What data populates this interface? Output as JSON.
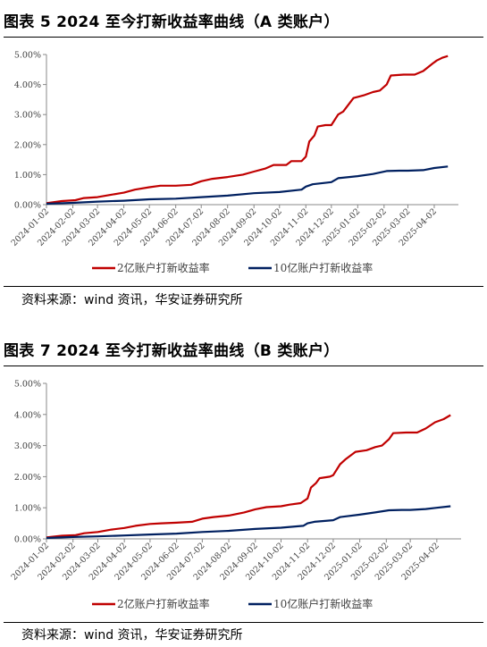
{
  "figures": [
    {
      "title": "图表 5 2024 至今打新收益率曲线（A 类账户）",
      "source": "资料来源：wind 资讯，华安证券研究所"
    },
    {
      "title": "图表 7 2024 至今打新收益率曲线（B 类账户）",
      "source": "资料来源：wind 资讯，华安证券研究所"
    }
  ],
  "chart_data": [
    {
      "type": "line",
      "title": "图表 5 2024 至今打新收益率曲线（A 类账户）",
      "x_ticks": [
        "2024-01-02",
        "2024-02-02",
        "2024-03-02",
        "2024-04-02",
        "2024-05-02",
        "2024-06-02",
        "2024-07-02",
        "2024-08-02",
        "2024-09-02",
        "2024-10-02",
        "2024-11-02",
        "2024-12-02",
        "2025-01-02",
        "2025-02-02",
        "2025-03-02",
        "2025-04-02"
      ],
      "y_ticks": [
        "0.00%",
        "1.00%",
        "2.00%",
        "3.00%",
        "4.00%",
        "5.00%"
      ],
      "ylim": [
        0,
        5
      ],
      "legend_position": "bottom",
      "grid": false,
      "series": [
        {
          "name": "2亿账户打新收益率",
          "color": "#c00000",
          "points": [
            [
              "2024-01-02",
              0.05
            ],
            [
              "2024-01-20",
              0.12
            ],
            [
              "2024-02-05",
              0.15
            ],
            [
              "2024-02-15",
              0.22
            ],
            [
              "2024-03-02",
              0.25
            ],
            [
              "2024-03-18",
              0.33
            ],
            [
              "2024-04-02",
              0.4
            ],
            [
              "2024-04-15",
              0.5
            ],
            [
              "2024-05-02",
              0.58
            ],
            [
              "2024-05-15",
              0.63
            ],
            [
              "2024-06-02",
              0.63
            ],
            [
              "2024-06-20",
              0.66
            ],
            [
              "2024-07-02",
              0.78
            ],
            [
              "2024-07-15",
              0.86
            ],
            [
              "2024-08-02",
              0.92
            ],
            [
              "2024-08-20",
              1.0
            ],
            [
              "2024-09-02",
              1.1
            ],
            [
              "2024-09-15",
              1.2
            ],
            [
              "2024-09-25",
              1.32
            ],
            [
              "2024-10-10",
              1.32
            ],
            [
              "2024-10-16",
              1.45
            ],
            [
              "2024-10-28",
              1.45
            ],
            [
              "2024-11-02",
              1.6
            ],
            [
              "2024-11-06",
              2.1
            ],
            [
              "2024-11-12",
              2.3
            ],
            [
              "2024-11-16",
              2.6
            ],
            [
              "2024-11-25",
              2.65
            ],
            [
              "2024-12-02",
              2.65
            ],
            [
              "2024-12-10",
              3.0
            ],
            [
              "2024-12-16",
              3.1
            ],
            [
              "2024-12-20",
              3.25
            ],
            [
              "2024-12-28",
              3.55
            ],
            [
              "2025-01-10",
              3.65
            ],
            [
              "2025-01-20",
              3.75
            ],
            [
              "2025-01-28",
              3.8
            ],
            [
              "2025-02-05",
              4.0
            ],
            [
              "2025-02-10",
              4.3
            ],
            [
              "2025-02-25",
              4.33
            ],
            [
              "2025-03-10",
              4.33
            ],
            [
              "2025-03-20",
              4.45
            ],
            [
              "2025-03-31",
              4.7
            ],
            [
              "2025-04-05",
              4.8
            ],
            [
              "2025-04-12",
              4.9
            ],
            [
              "2025-04-18",
              4.95
            ]
          ]
        },
        {
          "name": "10亿账户打新收益率",
          "color": "#002060",
          "points": [
            [
              "2024-01-02",
              0.03
            ],
            [
              "2024-02-02",
              0.06
            ],
            [
              "2024-03-02",
              0.1
            ],
            [
              "2024-04-02",
              0.13
            ],
            [
              "2024-05-02",
              0.18
            ],
            [
              "2024-06-02",
              0.2
            ],
            [
              "2024-07-02",
              0.25
            ],
            [
              "2024-08-02",
              0.3
            ],
            [
              "2024-09-02",
              0.38
            ],
            [
              "2024-10-02",
              0.42
            ],
            [
              "2024-10-28",
              0.5
            ],
            [
              "2024-11-02",
              0.6
            ],
            [
              "2024-11-10",
              0.68
            ],
            [
              "2024-12-02",
              0.75
            ],
            [
              "2024-12-10",
              0.88
            ],
            [
              "2025-01-02",
              0.95
            ],
            [
              "2025-01-20",
              1.02
            ],
            [
              "2025-02-05",
              1.12
            ],
            [
              "2025-02-20",
              1.13
            ],
            [
              "2025-03-02",
              1.13
            ],
            [
              "2025-03-20",
              1.15
            ],
            [
              "2025-04-02",
              1.22
            ],
            [
              "2025-04-18",
              1.27
            ]
          ]
        }
      ]
    },
    {
      "type": "line",
      "title": "图表 7 2024 至今打新收益率曲线（B 类账户）",
      "x_ticks": [
        "2024-01-02",
        "2024-02-02",
        "2024-03-02",
        "2024-04-02",
        "2024-05-02",
        "2024-06-02",
        "2024-07-02",
        "2024-08-02",
        "2024-09-02",
        "2024-10-02",
        "2024-11-02",
        "2024-12-02",
        "2025-01-02",
        "2025-02-02",
        "2025-03-02",
        "2025-04-02"
      ],
      "y_ticks": [
        "0.00%",
        "1.00%",
        "2.00%",
        "3.00%",
        "4.00%",
        "5.00%"
      ],
      "ylim": [
        0,
        5
      ],
      "legend_position": "bottom",
      "grid": false,
      "series": [
        {
          "name": "2亿账户打新收益率",
          "color": "#c00000",
          "points": [
            [
              "2024-01-02",
              0.05
            ],
            [
              "2024-01-20",
              0.1
            ],
            [
              "2024-02-05",
              0.12
            ],
            [
              "2024-02-15",
              0.18
            ],
            [
              "2024-03-02",
              0.22
            ],
            [
              "2024-03-18",
              0.3
            ],
            [
              "2024-04-02",
              0.35
            ],
            [
              "2024-04-15",
              0.42
            ],
            [
              "2024-05-02",
              0.48
            ],
            [
              "2024-05-15",
              0.5
            ],
            [
              "2024-06-02",
              0.52
            ],
            [
              "2024-06-20",
              0.55
            ],
            [
              "2024-07-02",
              0.65
            ],
            [
              "2024-07-15",
              0.7
            ],
            [
              "2024-08-02",
              0.75
            ],
            [
              "2024-08-20",
              0.85
            ],
            [
              "2024-09-02",
              0.95
            ],
            [
              "2024-09-15",
              1.02
            ],
            [
              "2024-10-02",
              1.05
            ],
            [
              "2024-10-12",
              1.1
            ],
            [
              "2024-10-25",
              1.15
            ],
            [
              "2024-11-02",
              1.3
            ],
            [
              "2024-11-06",
              1.65
            ],
            [
              "2024-11-12",
              1.8
            ],
            [
              "2024-11-16",
              1.95
            ],
            [
              "2024-11-28",
              2.0
            ],
            [
              "2024-12-02",
              2.05
            ],
            [
              "2024-12-10",
              2.4
            ],
            [
              "2024-12-16",
              2.55
            ],
            [
              "2024-12-28",
              2.8
            ],
            [
              "2025-01-10",
              2.85
            ],
            [
              "2025-01-20",
              2.95
            ],
            [
              "2025-01-28",
              3.0
            ],
            [
              "2025-02-05",
              3.2
            ],
            [
              "2025-02-10",
              3.4
            ],
            [
              "2025-02-25",
              3.42
            ],
            [
              "2025-03-10",
              3.42
            ],
            [
              "2025-03-20",
              3.55
            ],
            [
              "2025-03-31",
              3.75
            ],
            [
              "2025-04-10",
              3.85
            ],
            [
              "2025-04-18",
              3.98
            ]
          ]
        },
        {
          "name": "10亿账户打新收益率",
          "color": "#002060",
          "points": [
            [
              "2024-01-02",
              0.03
            ],
            [
              "2024-02-02",
              0.06
            ],
            [
              "2024-03-02",
              0.08
            ],
            [
              "2024-04-02",
              0.11
            ],
            [
              "2024-05-02",
              0.14
            ],
            [
              "2024-06-02",
              0.17
            ],
            [
              "2024-07-02",
              0.22
            ],
            [
              "2024-08-02",
              0.26
            ],
            [
              "2024-09-02",
              0.32
            ],
            [
              "2024-10-02",
              0.36
            ],
            [
              "2024-10-28",
              0.42
            ],
            [
              "2024-11-02",
              0.5
            ],
            [
              "2024-11-10",
              0.55
            ],
            [
              "2024-12-02",
              0.6
            ],
            [
              "2024-12-10",
              0.7
            ],
            [
              "2025-01-02",
              0.78
            ],
            [
              "2025-01-20",
              0.85
            ],
            [
              "2025-02-05",
              0.92
            ],
            [
              "2025-02-20",
              0.93
            ],
            [
              "2025-03-02",
              0.93
            ],
            [
              "2025-03-20",
              0.96
            ],
            [
              "2025-04-02",
              1.0
            ],
            [
              "2025-04-18",
              1.05
            ]
          ]
        }
      ]
    }
  ]
}
